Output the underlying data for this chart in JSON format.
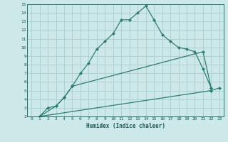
{
  "xlabel": "Humidex (Indice chaleur)",
  "bg_color": "#cce8e8",
  "grid_color": "#aacccc",
  "line_color": "#2e7d6e",
  "xlim": [
    -0.5,
    23.5
  ],
  "ylim": [
    2,
    15
  ],
  "xticks": [
    0,
    1,
    2,
    3,
    4,
    5,
    6,
    7,
    8,
    9,
    10,
    11,
    12,
    13,
    14,
    15,
    16,
    17,
    18,
    19,
    20,
    21,
    22,
    23
  ],
  "yticks": [
    2,
    3,
    4,
    5,
    6,
    7,
    8,
    9,
    10,
    11,
    12,
    13,
    14,
    15
  ],
  "line1_x": [
    1,
    2,
    3,
    4,
    5,
    6,
    7,
    8,
    9,
    10,
    11,
    12,
    13,
    14,
    15,
    16,
    17,
    18,
    19,
    20,
    21,
    22
  ],
  "line1_y": [
    2,
    3,
    3.2,
    4.2,
    5.5,
    7,
    8.2,
    9.8,
    10.7,
    11.6,
    13.2,
    13.2,
    14,
    14.8,
    13.2,
    11.5,
    10.7,
    10.0,
    9.8,
    9.5,
    7.5,
    5.3
  ],
  "line2_x": [
    1,
    3,
    4,
    5,
    21,
    22
  ],
  "line2_y": [
    2,
    3.2,
    4.2,
    5.5,
    9.5,
    5.3
  ],
  "line3_x": [
    1,
    22,
    23
  ],
  "line3_y": [
    2,
    5.0,
    5.3
  ]
}
